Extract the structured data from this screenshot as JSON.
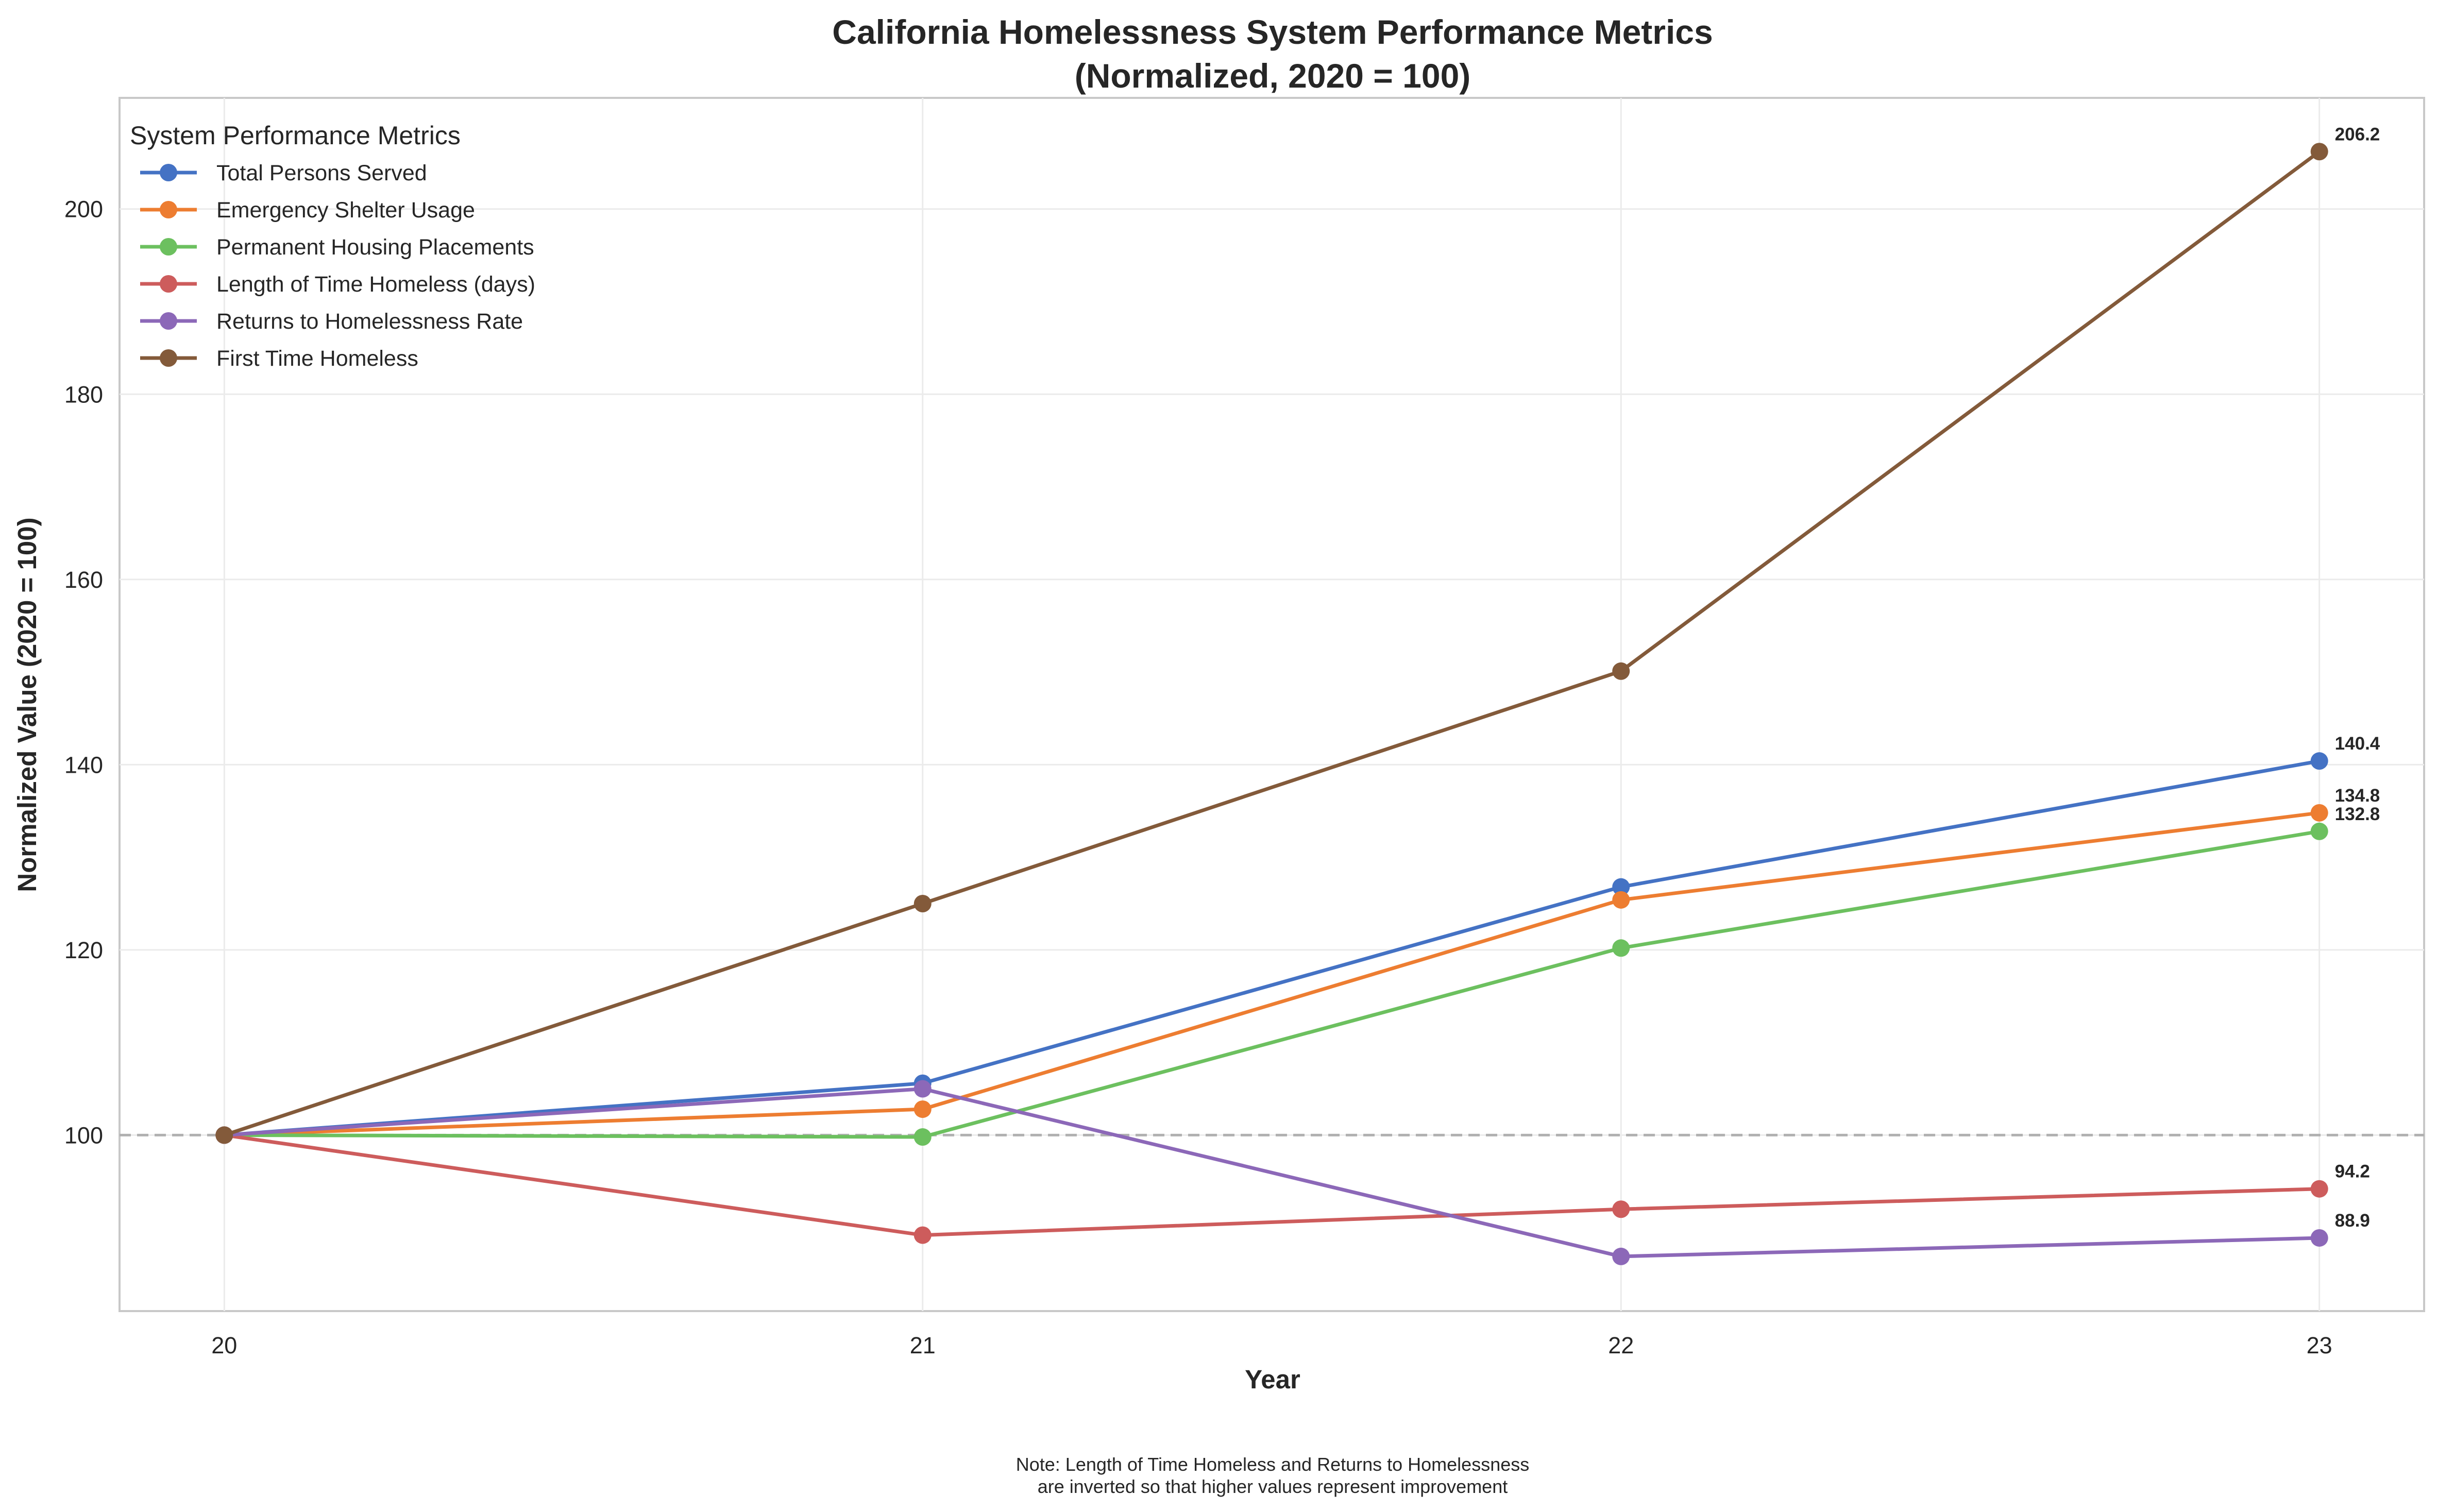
{
  "chart_data": {
    "type": "line",
    "title_lines": [
      "California Homelessness System Performance Metrics",
      "(Normalized, 2020 = 100)"
    ],
    "xlabel": "Year",
    "ylabel": "Normalized Value (2020 = 100)",
    "x": [
      20,
      21,
      22,
      23
    ],
    "x_tick_labels": [
      "20",
      "21",
      "22",
      "23"
    ],
    "xlim": [
      19.85,
      23.15
    ],
    "ylim": [
      81,
      212
    ],
    "y_ticks": [
      100,
      120,
      140,
      160,
      180,
      200
    ],
    "y_tick_labels": [
      "100",
      "120",
      "140",
      "160",
      "180",
      "200"
    ],
    "grid": true,
    "reference_line": {
      "y": 100,
      "style": "dashed",
      "color": "#b0b0b0"
    },
    "legend": {
      "title": "System Performance Metrics",
      "placement": "top-left"
    },
    "series": [
      {
        "name": "Total Persons Served",
        "color": "#4472c4",
        "values": [
          100,
          105.6,
          126.8,
          140.4
        ],
        "end_label": "140.4"
      },
      {
        "name": "Emergency Shelter Usage",
        "color": "#ed7d31",
        "values": [
          100,
          102.8,
          125.4,
          134.8
        ],
        "end_label": "134.8"
      },
      {
        "name": "Permanent Housing Placements",
        "color": "#6cc05f",
        "values": [
          100,
          99.8,
          120.2,
          132.8
        ],
        "end_label": "132.8"
      },
      {
        "name": "Length of Time Homeless (days)",
        "color": "#cd5c5c",
        "values": [
          100,
          89.2,
          92.0,
          94.2
        ],
        "end_label": "94.2"
      },
      {
        "name": "Returns to Homelessness Rate",
        "color": "#8c68b8",
        "values": [
          100,
          105.0,
          86.9,
          88.9
        ],
        "end_label": "88.9"
      },
      {
        "name": "First Time Homeless",
        "color": "#835a3a",
        "values": [
          100,
          125.0,
          150.1,
          206.2
        ],
        "end_label": "206.2"
      }
    ],
    "note_lines": [
      "Note: Length of Time Homeless and Returns to Homelessness",
      "are inverted so that higher values represent improvement"
    ]
  }
}
